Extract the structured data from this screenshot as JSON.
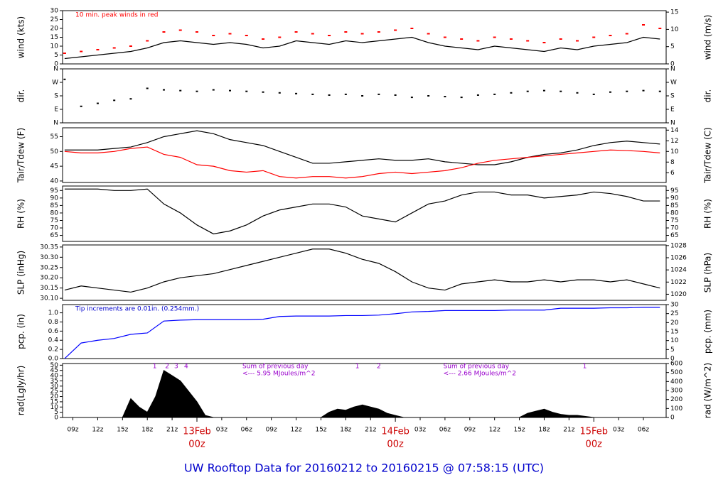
{
  "title": "UW Rooftop Data for 20160212  to  20160215 @ 07:58:15  (UTC)",
  "chart_data": [
    {
      "type": "line",
      "y_label": "wind (kts)",
      "y2_label": "wind (m/s)",
      "xlim": [
        7.75,
        80.75
      ],
      "ylim": [
        0,
        30
      ],
      "yticks": [
        0,
        5,
        10,
        15,
        20,
        25,
        30
      ],
      "y2lim": [
        0,
        15.43
      ],
      "y2ticks": [
        0,
        5,
        10,
        15
      ],
      "annotations": [
        {
          "text": "10 min. peak winds in red",
          "color": "#ff0000"
        }
      ],
      "x": [
        8,
        10,
        12,
        14,
        16,
        18,
        20,
        22,
        24,
        26,
        28,
        30,
        32,
        34,
        36,
        38,
        40,
        42,
        44,
        46,
        48,
        50,
        52,
        54,
        56,
        58,
        60,
        62,
        64,
        66,
        68,
        70,
        72,
        74,
        76,
        78,
        80
      ],
      "series": [
        {
          "name": "wind",
          "color": "#000000",
          "mark": "line",
          "values": [
            3,
            4,
            5,
            6,
            7,
            9,
            12,
            13,
            12,
            11,
            12,
            11,
            9,
            10,
            13,
            12,
            11,
            13,
            12,
            13,
            14,
            15,
            12,
            10,
            9,
            8,
            10,
            9,
            8,
            7,
            9,
            8,
            10,
            11,
            12,
            15,
            14
          ]
        },
        {
          "name": "peak",
          "color": "#ff0000",
          "mark": "dash",
          "values": [
            6,
            7,
            8,
            9,
            10,
            13,
            18,
            19,
            18,
            16,
            17,
            16,
            14,
            15,
            18,
            17,
            16,
            18,
            17,
            18,
            19,
            20,
            17,
            15,
            14,
            13,
            15,
            14,
            13,
            12,
            14,
            13,
            15,
            16,
            17,
            22,
            20
          ]
        }
      ]
    },
    {
      "type": "line",
      "y_label": "dir.",
      "y2_label": "dir.",
      "xlim": [
        7.75,
        80.75
      ],
      "ylim": [
        0,
        360
      ],
      "yticks": [
        {
          "value": 0,
          "label": "N"
        },
        {
          "value": 90,
          "label": "E"
        },
        {
          "value": 180,
          "label": "S"
        },
        {
          "value": 270,
          "label": "W"
        },
        {
          "value": 360,
          "label": "N"
        }
      ],
      "y2lim": [
        0,
        360
      ],
      "y2ticks": [
        {
          "value": 0,
          "label": "N"
        },
        {
          "value": 90,
          "label": "E"
        },
        {
          "value": 180,
          "label": "S"
        },
        {
          "value": 270,
          "label": "W"
        },
        {
          "value": 360,
          "label": "N"
        }
      ],
      "x": [
        8,
        10,
        12,
        14,
        16,
        18,
        20,
        22,
        24,
        26,
        28,
        30,
        32,
        34,
        36,
        38,
        40,
        42,
        44,
        46,
        48,
        50,
        52,
        54,
        56,
        58,
        60,
        62,
        64,
        66,
        68,
        70,
        72,
        74,
        76,
        78,
        80
      ],
      "series": [
        {
          "name": "dir",
          "color": "#000000",
          "mark": "dot",
          "values": [
            290,
            110,
            130,
            150,
            160,
            230,
            220,
            215,
            210,
            220,
            215,
            210,
            205,
            200,
            195,
            190,
            185,
            190,
            180,
            190,
            185,
            170,
            180,
            175,
            170,
            185,
            190,
            200,
            210,
            215,
            210,
            200,
            190,
            205,
            210,
            215,
            210
          ]
        }
      ]
    },
    {
      "type": "line",
      "y_label": "Tair/Tdew (F)",
      "y2_label": "Tair/Tdew (C)",
      "xlim": [
        7.75,
        80.75
      ],
      "ylim": [
        39.5,
        58
      ],
      "yticks": [
        40,
        45,
        50,
        55
      ],
      "y2lim": [
        4.17,
        14.44
      ],
      "y2ticks": [
        6,
        8,
        10,
        12,
        14
      ],
      "x": [
        8,
        10,
        12,
        14,
        16,
        18,
        20,
        22,
        24,
        26,
        28,
        30,
        32,
        34,
        36,
        38,
        40,
        42,
        44,
        46,
        48,
        50,
        52,
        54,
        56,
        58,
        60,
        62,
        64,
        66,
        68,
        70,
        72,
        74,
        76,
        78,
        80
      ],
      "series": [
        {
          "name": "Tair",
          "color": "#000000",
          "mark": "line",
          "values": [
            50.5,
            50.5,
            50.5,
            51,
            51.5,
            53,
            55,
            56,
            57,
            56,
            54,
            53,
            52,
            50,
            48,
            46,
            46,
            46.5,
            47,
            47.5,
            47,
            47,
            47.5,
            46.5,
            46,
            45.5,
            45.5,
            46.5,
            48,
            49,
            49.5,
            50.5,
            52,
            53,
            53.5,
            53,
            52.5
          ]
        },
        {
          "name": "Tdew",
          "color": "#ff0000",
          "mark": "line",
          "values": [
            50,
            49.5,
            49.5,
            50,
            51,
            51.5,
            49,
            48,
            45.5,
            45,
            43.5,
            43,
            43.5,
            41.5,
            41,
            41.5,
            41.5,
            41,
            41.5,
            42.5,
            43,
            42.5,
            43,
            43.5,
            44.5,
            46,
            47,
            47.5,
            48,
            48.5,
            49,
            49.5,
            50,
            50.5,
            50.3,
            50,
            49.5
          ]
        }
      ]
    },
    {
      "type": "line",
      "y_label": "RH (%)",
      "y2_label": "RH (%)",
      "xlim": [
        7.75,
        80.75
      ],
      "ylim": [
        61,
        98
      ],
      "yticks": [
        65,
        70,
        75,
        80,
        85,
        90,
        95
      ],
      "y2lim": [
        61,
        98
      ],
      "y2ticks": [
        65,
        70,
        75,
        80,
        85,
        90,
        95
      ],
      "x": [
        8,
        10,
        12,
        14,
        16,
        18,
        20,
        22,
        24,
        26,
        28,
        30,
        32,
        34,
        36,
        38,
        40,
        42,
        44,
        46,
        48,
        50,
        52,
        54,
        56,
        58,
        60,
        62,
        64,
        66,
        68,
        70,
        72,
        74,
        76,
        78,
        80
      ],
      "series": [
        {
          "name": "RH",
          "color": "#000000",
          "mark": "line",
          "values": [
            96,
            96,
            96,
            95,
            95,
            96,
            86,
            80,
            72,
            66,
            68,
            72,
            78,
            82,
            84,
            86,
            86,
            84,
            78,
            76,
            74,
            80,
            86,
            88,
            92,
            94,
            94,
            92,
            92,
            90,
            91,
            92,
            94,
            93,
            91,
            88,
            88
          ]
        }
      ]
    },
    {
      "type": "line",
      "y_label": "SLP (inHg)",
      "y2_label": "SLP (hPa)",
      "xlim": [
        7.75,
        80.75
      ],
      "ylim": [
        30.09,
        30.36
      ],
      "yticks": [
        {
          "value": 30.1,
          "label": "30.10"
        },
        30.15,
        {
          "value": 30.2,
          "label": "30.20"
        },
        30.25,
        {
          "value": 30.3,
          "label": "30.30"
        },
        30.35
      ],
      "y2lim": [
        1019,
        1028.1
      ],
      "y2ticks": [
        1020,
        1022,
        1024,
        1026,
        1028
      ],
      "x": [
        8,
        10,
        12,
        14,
        16,
        18,
        20,
        22,
        24,
        26,
        28,
        30,
        32,
        34,
        36,
        38,
        40,
        42,
        44,
        46,
        48,
        50,
        52,
        54,
        56,
        58,
        60,
        62,
        64,
        66,
        68,
        70,
        72,
        74,
        76,
        78,
        80
      ],
      "series": [
        {
          "name": "SLP",
          "color": "#000000",
          "mark": "line",
          "values": [
            30.14,
            30.16,
            30.15,
            30.14,
            30.13,
            30.15,
            30.18,
            30.2,
            30.21,
            30.22,
            30.24,
            30.26,
            30.28,
            30.3,
            30.32,
            30.34,
            30.34,
            30.32,
            30.29,
            30.27,
            30.23,
            30.18,
            30.15,
            30.14,
            30.17,
            30.18,
            30.19,
            30.18,
            30.18,
            30.19,
            30.18,
            30.19,
            30.19,
            30.18,
            30.19,
            30.17,
            30.15
          ]
        }
      ]
    },
    {
      "type": "line",
      "y_label": "pcp. (in)",
      "y2_label": "pcp. (mm)",
      "xlim": [
        7.75,
        80.75
      ],
      "ylim": [
        0,
        1.18
      ],
      "yticks": [
        {
          "value": 0,
          "label": "0.0"
        },
        0.2,
        0.4,
        0.6,
        0.8,
        {
          "value": 1,
          "label": "1.0"
        }
      ],
      "y2lim": [
        0,
        30
      ],
      "y2ticks": [
        0,
        5,
        10,
        15,
        20,
        25,
        30
      ],
      "annotations": [
        {
          "text": "Tip increments are 0.01in. (0.254mm.)",
          "color": "#0000cc"
        }
      ],
      "x": [
        8,
        10,
        12,
        14,
        16,
        18,
        20,
        22,
        24,
        26,
        28,
        30,
        32,
        34,
        36,
        38,
        40,
        42,
        44,
        46,
        48,
        50,
        52,
        54,
        56,
        58,
        60,
        62,
        64,
        66,
        68,
        70,
        72,
        74,
        76,
        78,
        80
      ],
      "series": [
        {
          "name": "pcp",
          "color": "#0000ff",
          "mark": "line",
          "values": [
            0,
            0.34,
            0.4,
            0.44,
            0.53,
            0.56,
            0.82,
            0.84,
            0.85,
            0.85,
            0.85,
            0.85,
            0.86,
            0.92,
            0.93,
            0.93,
            0.93,
            0.94,
            0.94,
            0.95,
            0.98,
            1.02,
            1.03,
            1.05,
            1.05,
            1.05,
            1.05,
            1.06,
            1.06,
            1.06,
            1.1,
            1.1,
            1.1,
            1.11,
            1.11,
            1.12,
            1.12
          ]
        }
      ]
    },
    {
      "type": "area",
      "y_label": "rad(Lgly/hr)",
      "y2_label": "rad (W/m^2)",
      "xlim": [
        7.75,
        80.75
      ],
      "ylim": [
        0,
        51.6
      ],
      "yticks": [
        0,
        5,
        10,
        15,
        20,
        25,
        30,
        35,
        40,
        45,
        50
      ],
      "y2lim": [
        0,
        600
      ],
      "y2ticks": [
        0,
        100,
        200,
        300,
        400,
        500,
        600
      ],
      "xticks": [
        {
          "value": 9,
          "label": "09z"
        },
        {
          "value": 12,
          "label": "12z"
        },
        {
          "value": 15,
          "label": "15z"
        },
        {
          "value": 18,
          "label": "18z"
        },
        {
          "value": 21,
          "label": "21z"
        },
        {
          "value": 27,
          "label": "03z"
        },
        {
          "value": 30,
          "label": "06z"
        },
        {
          "value": 33,
          "label": "09z"
        },
        {
          "value": 36,
          "label": "12z"
        },
        {
          "value": 39,
          "label": "15z"
        },
        {
          "value": 42,
          "label": "18z"
        },
        {
          "value": 45,
          "label": "21z"
        },
        {
          "value": 51,
          "label": "03z"
        },
        {
          "value": 54,
          "label": "06z"
        },
        {
          "value": 57,
          "label": "09z"
        },
        {
          "value": 60,
          "label": "12z"
        },
        {
          "value": 63,
          "label": "15z"
        },
        {
          "value": 66,
          "label": "18z"
        },
        {
          "value": 69,
          "label": "21z"
        },
        {
          "value": 75,
          "label": "03z"
        },
        {
          "value": 78,
          "label": "06z"
        }
      ],
      "day_labels": [
        {
          "value": 24,
          "date": "13Feb",
          "hour": "00z"
        },
        {
          "value": 48,
          "date": "14Feb",
          "hour": "00z"
        },
        {
          "value": 72,
          "date": "15Feb",
          "hour": "00z"
        }
      ],
      "markers": [
        {
          "text": "1",
          "x": 18.9
        },
        {
          "text": "2",
          "x": 20.4
        },
        {
          "text": "3",
          "x": 21.5
        },
        {
          "text": "4",
          "x": 22.7
        },
        {
          "text": "1",
          "x": 43.4
        },
        {
          "text": "2",
          "x": 46
        },
        {
          "text": "1",
          "x": 70.9
        }
      ],
      "annotations": [
        {
          "text": "Sum of previous day",
          "sub": "<--- 5.95 MJoules/m^2",
          "x": 29.5
        },
        {
          "text": "Sum of previous day",
          "sub": "<--- 2.66 MJoules/m^2",
          "x": 53.8
        }
      ],
      "x": [
        8,
        9,
        10,
        11,
        12,
        13,
        14,
        15,
        16,
        17,
        18,
        19,
        20,
        21,
        22,
        23,
        24,
        25,
        26,
        27,
        28,
        29,
        30,
        31,
        32,
        33,
        34,
        35,
        36,
        37,
        38,
        39,
        40,
        41,
        42,
        43,
        44,
        45,
        46,
        47,
        48,
        49,
        50,
        51,
        52,
        53,
        54,
        55,
        56,
        57,
        58,
        59,
        60,
        61,
        62,
        63,
        64,
        65,
        66,
        67,
        68,
        69,
        70,
        71,
        72,
        73,
        74,
        75,
        76,
        77,
        78,
        79,
        80
      ],
      "series": [
        {
          "name": "rad",
          "color": "#000000",
          "values": [
            0,
            0,
            0,
            0,
            0,
            0,
            0,
            0,
            18,
            10,
            5,
            20,
            45,
            40,
            35,
            25,
            15,
            2,
            0,
            0,
            0,
            0,
            0,
            0,
            0,
            0,
            0,
            0,
            0,
            0,
            0,
            0,
            5,
            8,
            7,
            10,
            12,
            10,
            8,
            4,
            2,
            0,
            0,
            0,
            0,
            0,
            0,
            0,
            0,
            0,
            0,
            0,
            0,
            0,
            0,
            0,
            4,
            6,
            8,
            5,
            3,
            2,
            2,
            1,
            0,
            0,
            0,
            0,
            0,
            0,
            0,
            0,
            0
          ]
        }
      ]
    }
  ]
}
